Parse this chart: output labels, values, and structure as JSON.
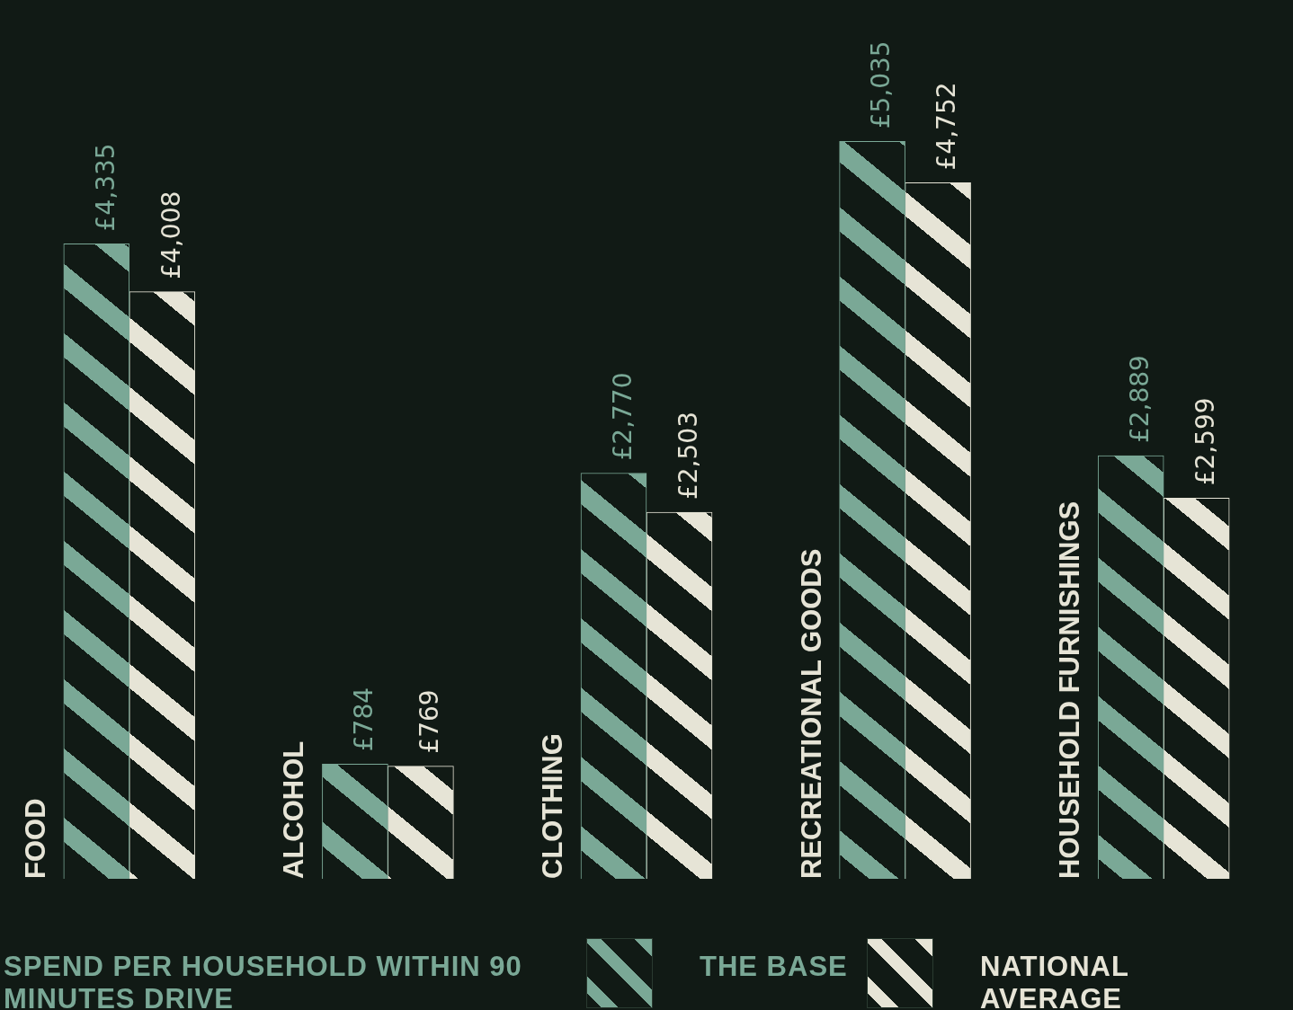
{
  "chart_data": {
    "type": "bar",
    "title": "SPEND PER HOUSEHOLD WITHIN 90 MINUTES DRIVE",
    "categories": [
      "FOOD",
      "ALCOHOL",
      "CLOTHING",
      "RECREATIONAL GOODS",
      "HOUSEHOLD FURNISHINGS"
    ],
    "series": [
      {
        "name": "THE BASE",
        "color": "#7aa896",
        "values": [
          4335,
          784,
          2770,
          5035,
          2889
        ],
        "value_labels": [
          "£4,335",
          "£784",
          "£2,770",
          "£5,035",
          "£2,889"
        ]
      },
      {
        "name": "NATIONAL AVERAGE",
        "color": "#e6e4d6",
        "values": [
          4008,
          769,
          2503,
          4752,
          2599
        ],
        "value_labels": [
          "£4,008",
          "£769",
          "£2,503",
          "£4,752",
          "£2,599"
        ]
      }
    ],
    "legend": "bottom"
  }
}
